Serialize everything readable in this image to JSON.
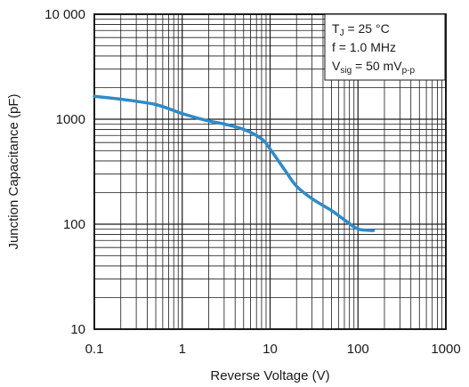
{
  "chart_data": {
    "type": "line",
    "xscale": "log",
    "yscale": "log",
    "xlim": [
      0.1,
      1000
    ],
    "ylim": [
      10,
      10000
    ],
    "xlabel": "Reverse Voltage (V)",
    "ylabel": "Junction Capacitance (pF)",
    "x_tick_labels": [
      "0.1",
      "1",
      "10",
      "100",
      "1000"
    ],
    "x_tick_values": [
      0.1,
      1,
      10,
      100,
      1000
    ],
    "y_tick_labels": [
      "10",
      "100",
      "1000",
      "10 000"
    ],
    "y_tick_values": [
      10,
      100,
      1000,
      10000
    ],
    "grid": true,
    "legend_position": "top-right",
    "annotation": {
      "line1": {
        "main": "T",
        "sub": "J",
        "rest": " = 25 °C"
      },
      "line2": {
        "text": "f = 1.0 MHz"
      },
      "line3": {
        "main": "V",
        "sub": "sig",
        "rest": " = 50 mV",
        "sub2": "p-p"
      }
    },
    "series": [
      {
        "color": "#2e8bc9",
        "x": [
          0.1,
          0.2,
          0.5,
          1,
          2,
          3,
          5,
          8,
          10,
          15,
          20,
          30,
          50,
          70,
          100,
          150
        ],
        "y": [
          1650,
          1550,
          1380,
          1130,
          960,
          900,
          800,
          650,
          520,
          320,
          230,
          175,
          135,
          110,
          90,
          87
        ]
      }
    ]
  }
}
